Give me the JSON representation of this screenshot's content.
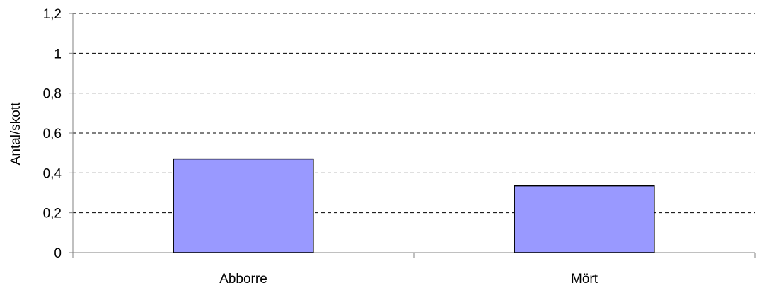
{
  "chart_data": {
    "type": "bar",
    "categories": [
      "Abborre",
      "Mört"
    ],
    "values": [
      0.47,
      0.335
    ],
    "ylabel": "Antal/skott",
    "ylim": [
      0,
      1.2
    ],
    "yticks": [
      0,
      0.2,
      0.4,
      0.6,
      0.8,
      1,
      1.2
    ],
    "ytick_labels": [
      "0",
      "0,2",
      "0,4",
      "0,6",
      "0,8",
      "1",
      "1,2"
    ],
    "grid": true,
    "bar_color": "#9999FF",
    "bar_edge_color": "#000000",
    "gridline_color": "#000000",
    "axis_color": "#808080"
  }
}
